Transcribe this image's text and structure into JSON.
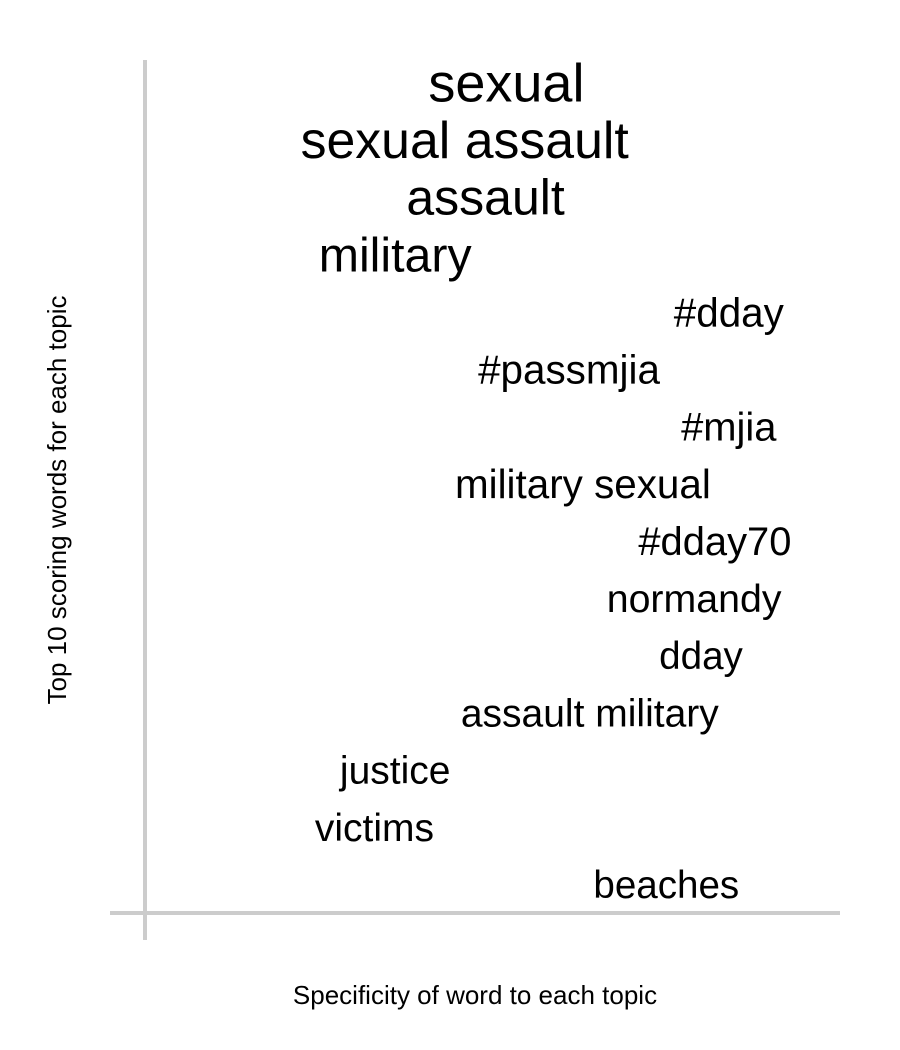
{
  "chart_data": {
    "type": "scatter",
    "title": "",
    "xlabel": "Specificity of word to each topic",
    "ylabel": "Top 10 scoring words for each topic",
    "grid": false,
    "legend": "none",
    "axis_color": "#cccccc",
    "text_color": "#000000",
    "points": [
      {
        "word": "sexual",
        "rank": 1,
        "specificity": 0.52,
        "score": 1.0
      },
      {
        "word": "sexual assault",
        "rank": 2,
        "specificity": 0.46,
        "score": 0.9
      },
      {
        "word": "assault",
        "rank": 3,
        "specificity": 0.49,
        "score": 0.82
      },
      {
        "word": "military",
        "rank": 4,
        "specificity": 0.36,
        "score": 0.74
      },
      {
        "word": "#dday",
        "rank": 5,
        "specificity": 0.84,
        "score": 0.38
      },
      {
        "word": "#passmjia",
        "rank": 6,
        "specificity": 0.61,
        "score": 0.38
      },
      {
        "word": "#mjia",
        "rank": 7,
        "specificity": 0.84,
        "score": 0.36
      },
      {
        "word": "military sexual",
        "rank": 8,
        "specificity": 0.63,
        "score": 0.38
      },
      {
        "word": "#dday70",
        "rank": 9,
        "specificity": 0.82,
        "score": 0.36
      },
      {
        "word": "normandy",
        "rank": 10,
        "specificity": 0.79,
        "score": 0.33
      },
      {
        "word": "dday",
        "rank": 11,
        "specificity": 0.8,
        "score": 0.3
      },
      {
        "word": "assault military",
        "rank": 12,
        "specificity": 0.64,
        "score": 0.32
      },
      {
        "word": "justice",
        "rank": 13,
        "specificity": 0.36,
        "score": 0.32
      },
      {
        "word": "victims",
        "rank": 14,
        "specificity": 0.33,
        "score": 0.32
      },
      {
        "word": "beaches",
        "rank": 15,
        "specificity": 0.75,
        "score": 0.3
      }
    ]
  }
}
